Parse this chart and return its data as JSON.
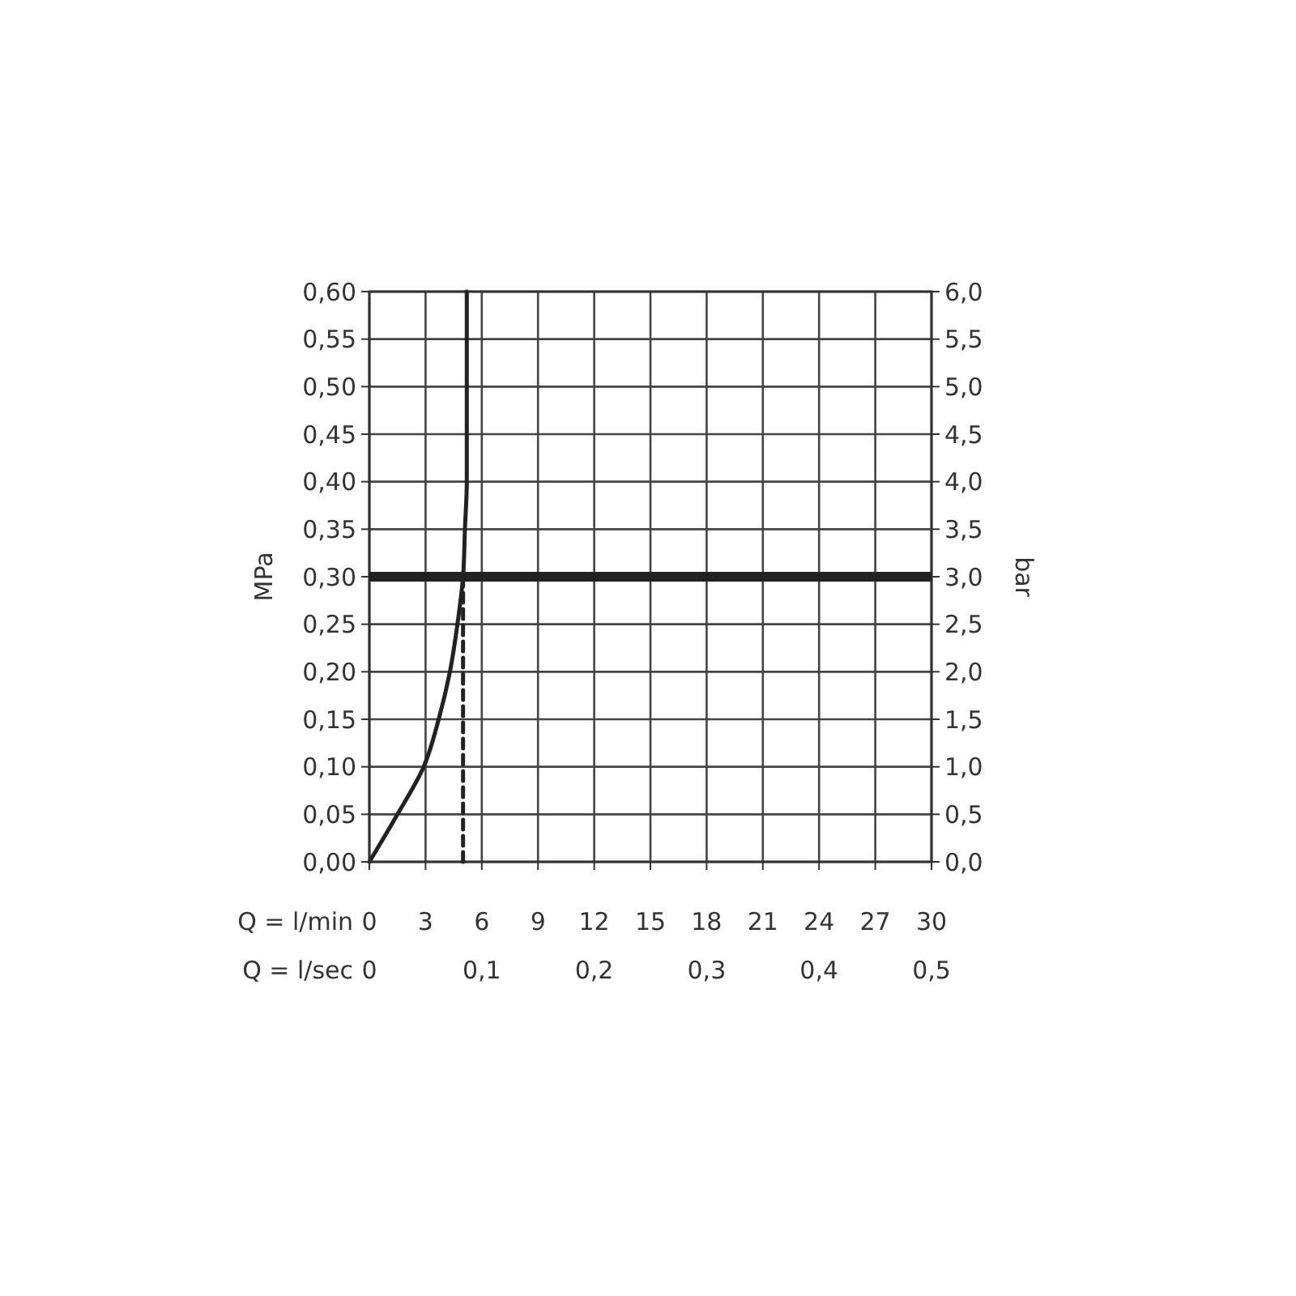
{
  "chart_data": {
    "type": "line",
    "xlabel": "Q = l/min",
    "x2label": "Q = l/sec",
    "ylabel": "MPa",
    "y2label": "bar",
    "xlim": [
      0,
      30
    ],
    "xticks": [
      0,
      3,
      6,
      9,
      12,
      15,
      18,
      21,
      24,
      27,
      30
    ],
    "x2lim": [
      0,
      0.5
    ],
    "x2ticks": [
      {
        "value": 0,
        "label": "0"
      },
      {
        "value": 0.1,
        "label": "0,1"
      },
      {
        "value": 0.2,
        "label": "0,2"
      },
      {
        "value": 0.3,
        "label": "0,3"
      },
      {
        "value": 0.4,
        "label": "0,4"
      },
      {
        "value": 0.5,
        "label": "0,5"
      }
    ],
    "ylim": [
      0,
      0.6
    ],
    "yticks": [
      {
        "value": 0,
        "label": "0,00"
      },
      {
        "value": 0.05,
        "label": "0,05"
      },
      {
        "value": 0.1,
        "label": "0,10"
      },
      {
        "value": 0.15,
        "label": "0,15"
      },
      {
        "value": 0.2,
        "label": "0,20"
      },
      {
        "value": 0.25,
        "label": "0,25"
      },
      {
        "value": 0.3,
        "label": "0,30"
      },
      {
        "value": 0.35,
        "label": "0,35"
      },
      {
        "value": 0.4,
        "label": "0,40"
      },
      {
        "value": 0.45,
        "label": "0,45"
      },
      {
        "value": 0.5,
        "label": "0,50"
      },
      {
        "value": 0.55,
        "label": "0,55"
      },
      {
        "value": 0.6,
        "label": "0,60"
      }
    ],
    "y2lim": [
      0,
      6
    ],
    "y2ticks": [
      {
        "value": 0,
        "label": "0,0"
      },
      {
        "value": 0.5,
        "label": "0,5"
      },
      {
        "value": 1,
        "label": "1,0"
      },
      {
        "value": 1.5,
        "label": "1,5"
      },
      {
        "value": 2,
        "label": "2,0"
      },
      {
        "value": 2.5,
        "label": "2,5"
      },
      {
        "value": 3,
        "label": "3,0"
      },
      {
        "value": 3.5,
        "label": "3,5"
      },
      {
        "value": 4,
        "label": "4,0"
      },
      {
        "value": 4.5,
        "label": "4,5"
      },
      {
        "value": 5,
        "label": "5,0"
      },
      {
        "value": 5.5,
        "label": "5,5"
      },
      {
        "value": 6,
        "label": "6,0"
      }
    ],
    "grid": true,
    "marker": "none",
    "series": [
      {
        "color": "#222222",
        "line_style": "solid",
        "x": [
          0,
          1.5,
          2.9,
          3.7,
          4.3,
          4.7,
          5.0,
          5.1,
          5.2,
          5.2,
          5.2
        ],
        "values": [
          0,
          0.05,
          0.1,
          0.15,
          0.2,
          0.25,
          0.3,
          0.35,
          0.4,
          0.45,
          0.6
        ]
      },
      {
        "color": "#222222",
        "line_style": "dashed",
        "x": [
          5.0,
          5.0
        ],
        "values": [
          0,
          0.3
        ]
      }
    ],
    "ref_lines": [
      {
        "axis": "y",
        "value": 0.3,
        "color": "#222222",
        "line_style": "solid"
      }
    ]
  }
}
